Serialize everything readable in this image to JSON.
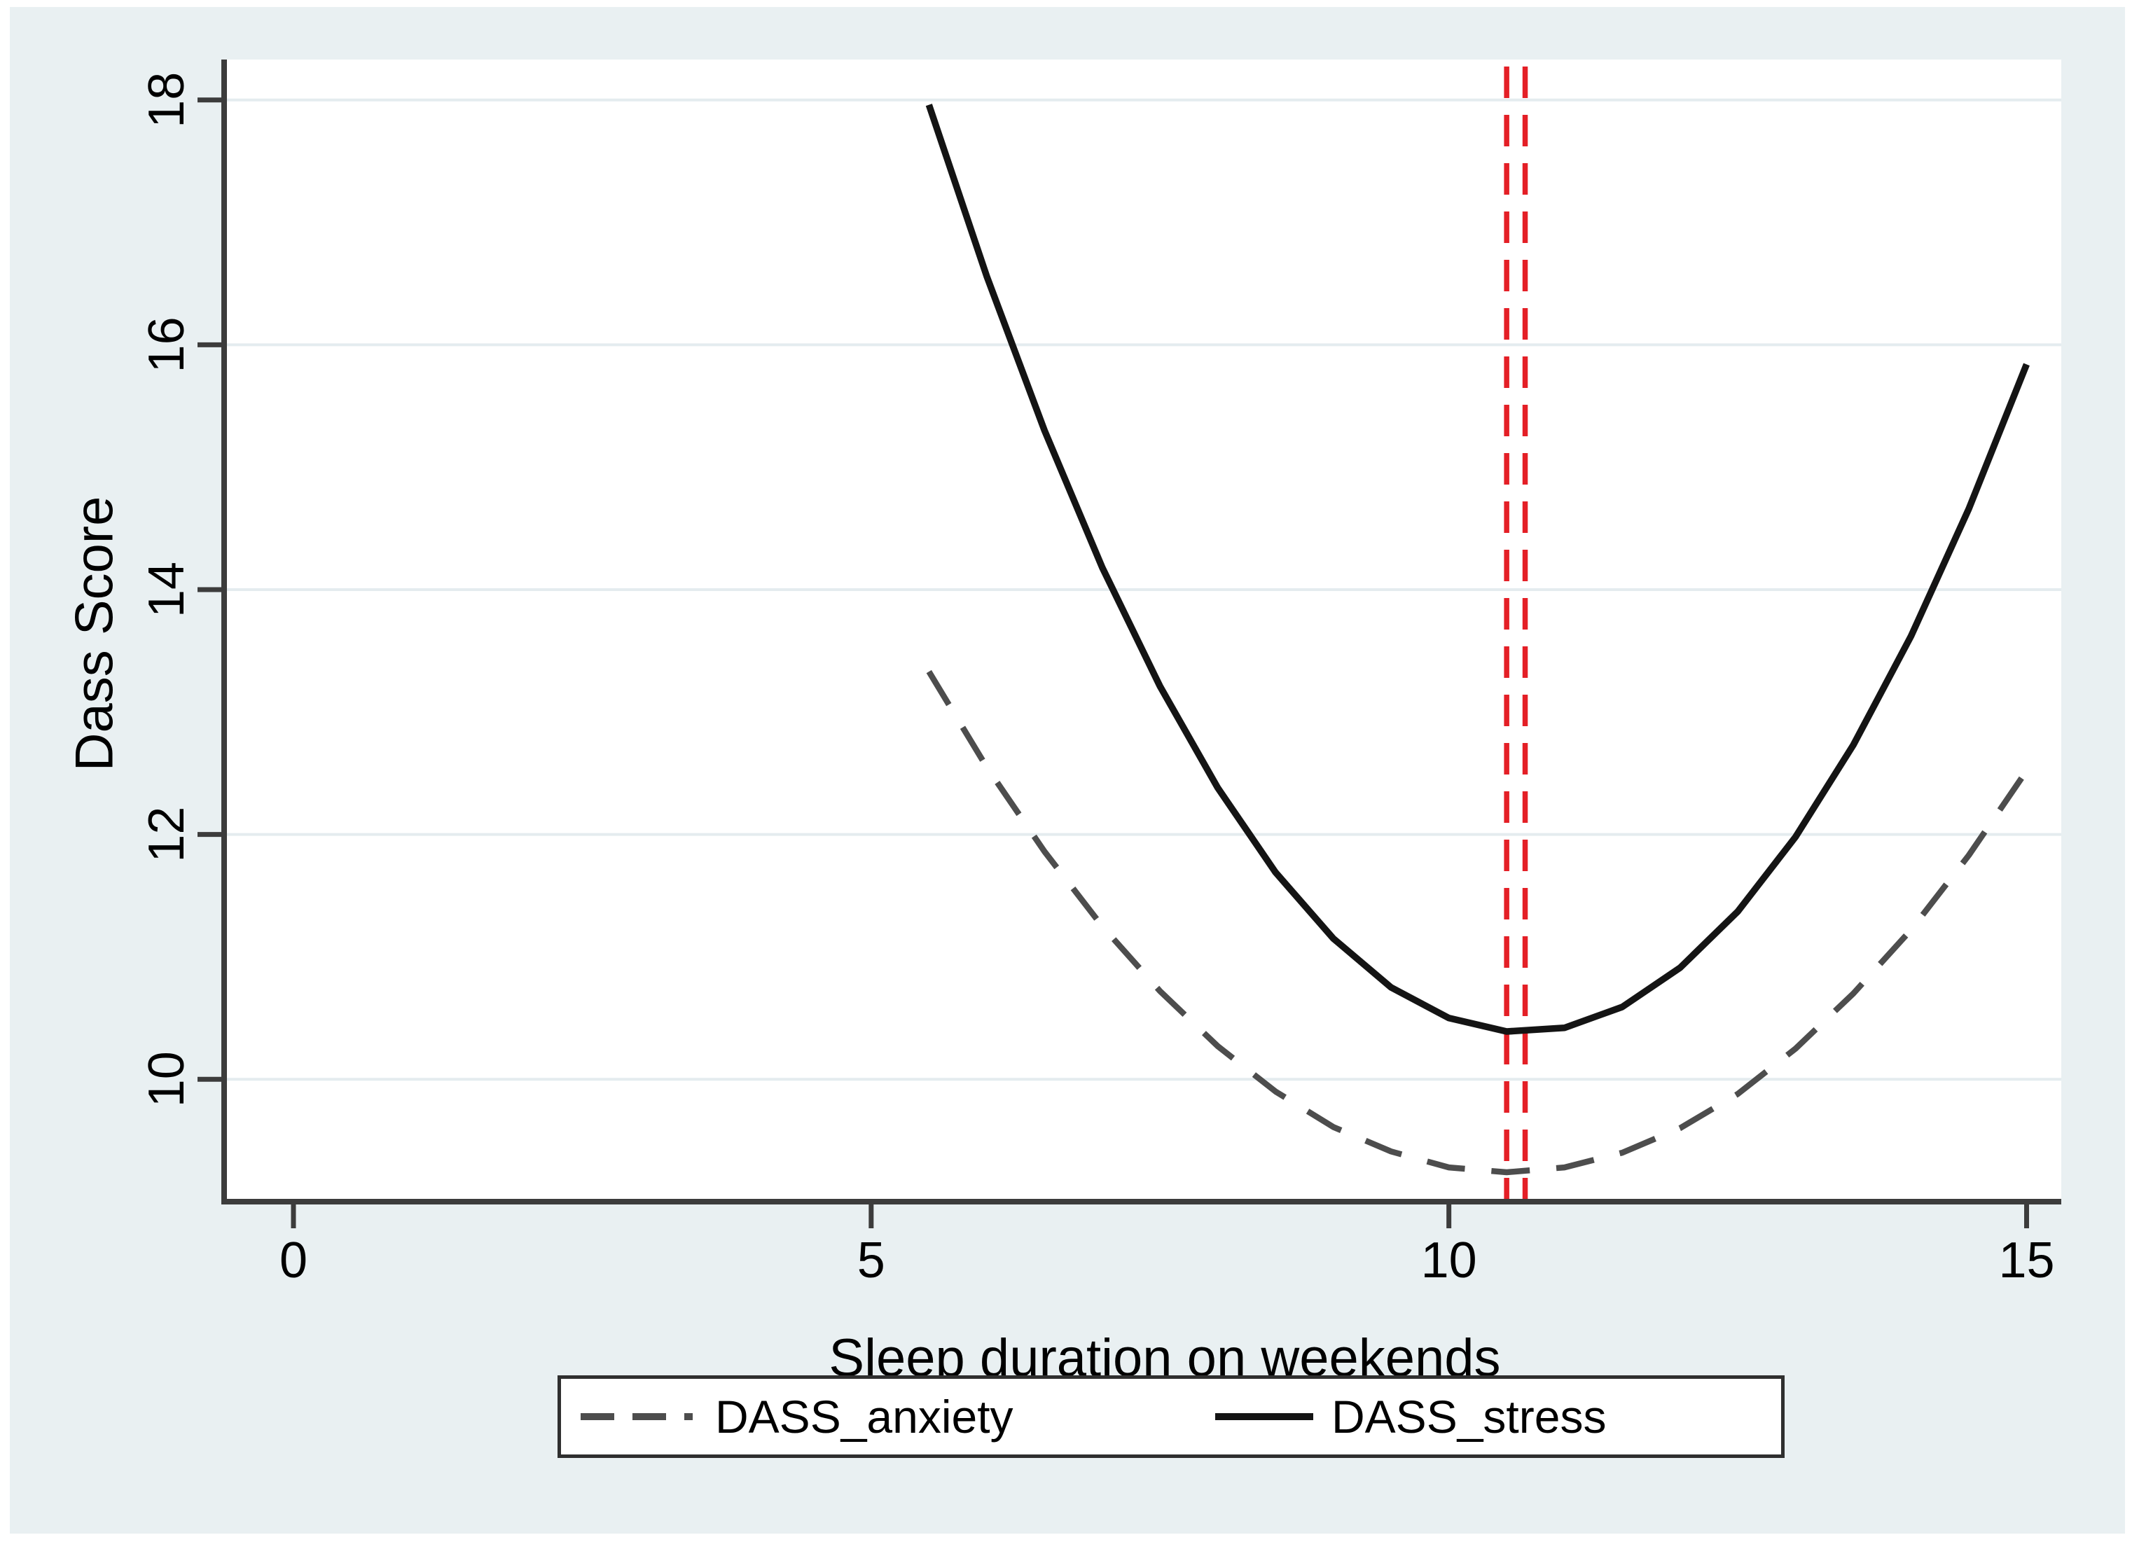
{
  "figure": {
    "background_color": "#e9f0f2",
    "plot_background": "#ffffff",
    "axis_color": "#3c3c3c",
    "grid_color": "#e4ecef",
    "text_color": "#000000"
  },
  "chart_data": {
    "type": "line",
    "title": "",
    "xlabel": "Sleep duration on weekends",
    "ylabel": "Dass Score",
    "xlim": [
      -0.6,
      15.3
    ],
    "ylim": [
      9.0,
      18.33
    ],
    "x_ticks": [
      0,
      5,
      10,
      15
    ],
    "y_ticks": [
      10,
      12,
      14,
      16,
      18
    ],
    "grid": "horizontal",
    "legend_position": "bottom-center",
    "series": [
      {
        "name": "DASS_anxiety",
        "line_style": "dashed",
        "color": "#4d4d4d",
        "points": [
          [
            5.5,
            13.33
          ],
          [
            6,
            12.55
          ],
          [
            6.5,
            11.86
          ],
          [
            7,
            11.25
          ],
          [
            7.5,
            10.72
          ],
          [
            8,
            10.27
          ],
          [
            8.5,
            9.9
          ],
          [
            9,
            9.61
          ],
          [
            9.5,
            9.41
          ],
          [
            10,
            9.28
          ],
          [
            10.5,
            9.24
          ],
          [
            11,
            9.28
          ],
          [
            11.5,
            9.4
          ],
          [
            12,
            9.6
          ],
          [
            12.5,
            9.88
          ],
          [
            13,
            10.25
          ],
          [
            13.5,
            10.7
          ],
          [
            14,
            11.22
          ],
          [
            14.5,
            11.83
          ],
          [
            15,
            12.52
          ]
        ]
      },
      {
        "name": "DASS_stress",
        "line_style": "solid",
        "color": "#141414",
        "points": [
          [
            5.5,
            17.96
          ],
          [
            6,
            16.56
          ],
          [
            6.5,
            15.3
          ],
          [
            7,
            14.18
          ],
          [
            7.5,
            13.21
          ],
          [
            8,
            12.38
          ],
          [
            8.5,
            11.69
          ],
          [
            9,
            11.15
          ],
          [
            9.5,
            10.75
          ],
          [
            10,
            10.5
          ],
          [
            10.5,
            10.39
          ],
          [
            11,
            10.42
          ],
          [
            11.5,
            10.59
          ],
          [
            12,
            10.91
          ],
          [
            12.5,
            11.37
          ],
          [
            13,
            11.98
          ],
          [
            13.5,
            12.73
          ],
          [
            14,
            13.62
          ],
          [
            14.5,
            14.66
          ],
          [
            15,
            15.84
          ]
        ]
      }
    ],
    "reference_lines": [
      {
        "axis": "x",
        "value": 10.5,
        "color": "#e41f26",
        "style": "dashed"
      },
      {
        "axis": "x",
        "value": 10.66,
        "color": "#e41f26",
        "style": "dashed"
      }
    ]
  }
}
